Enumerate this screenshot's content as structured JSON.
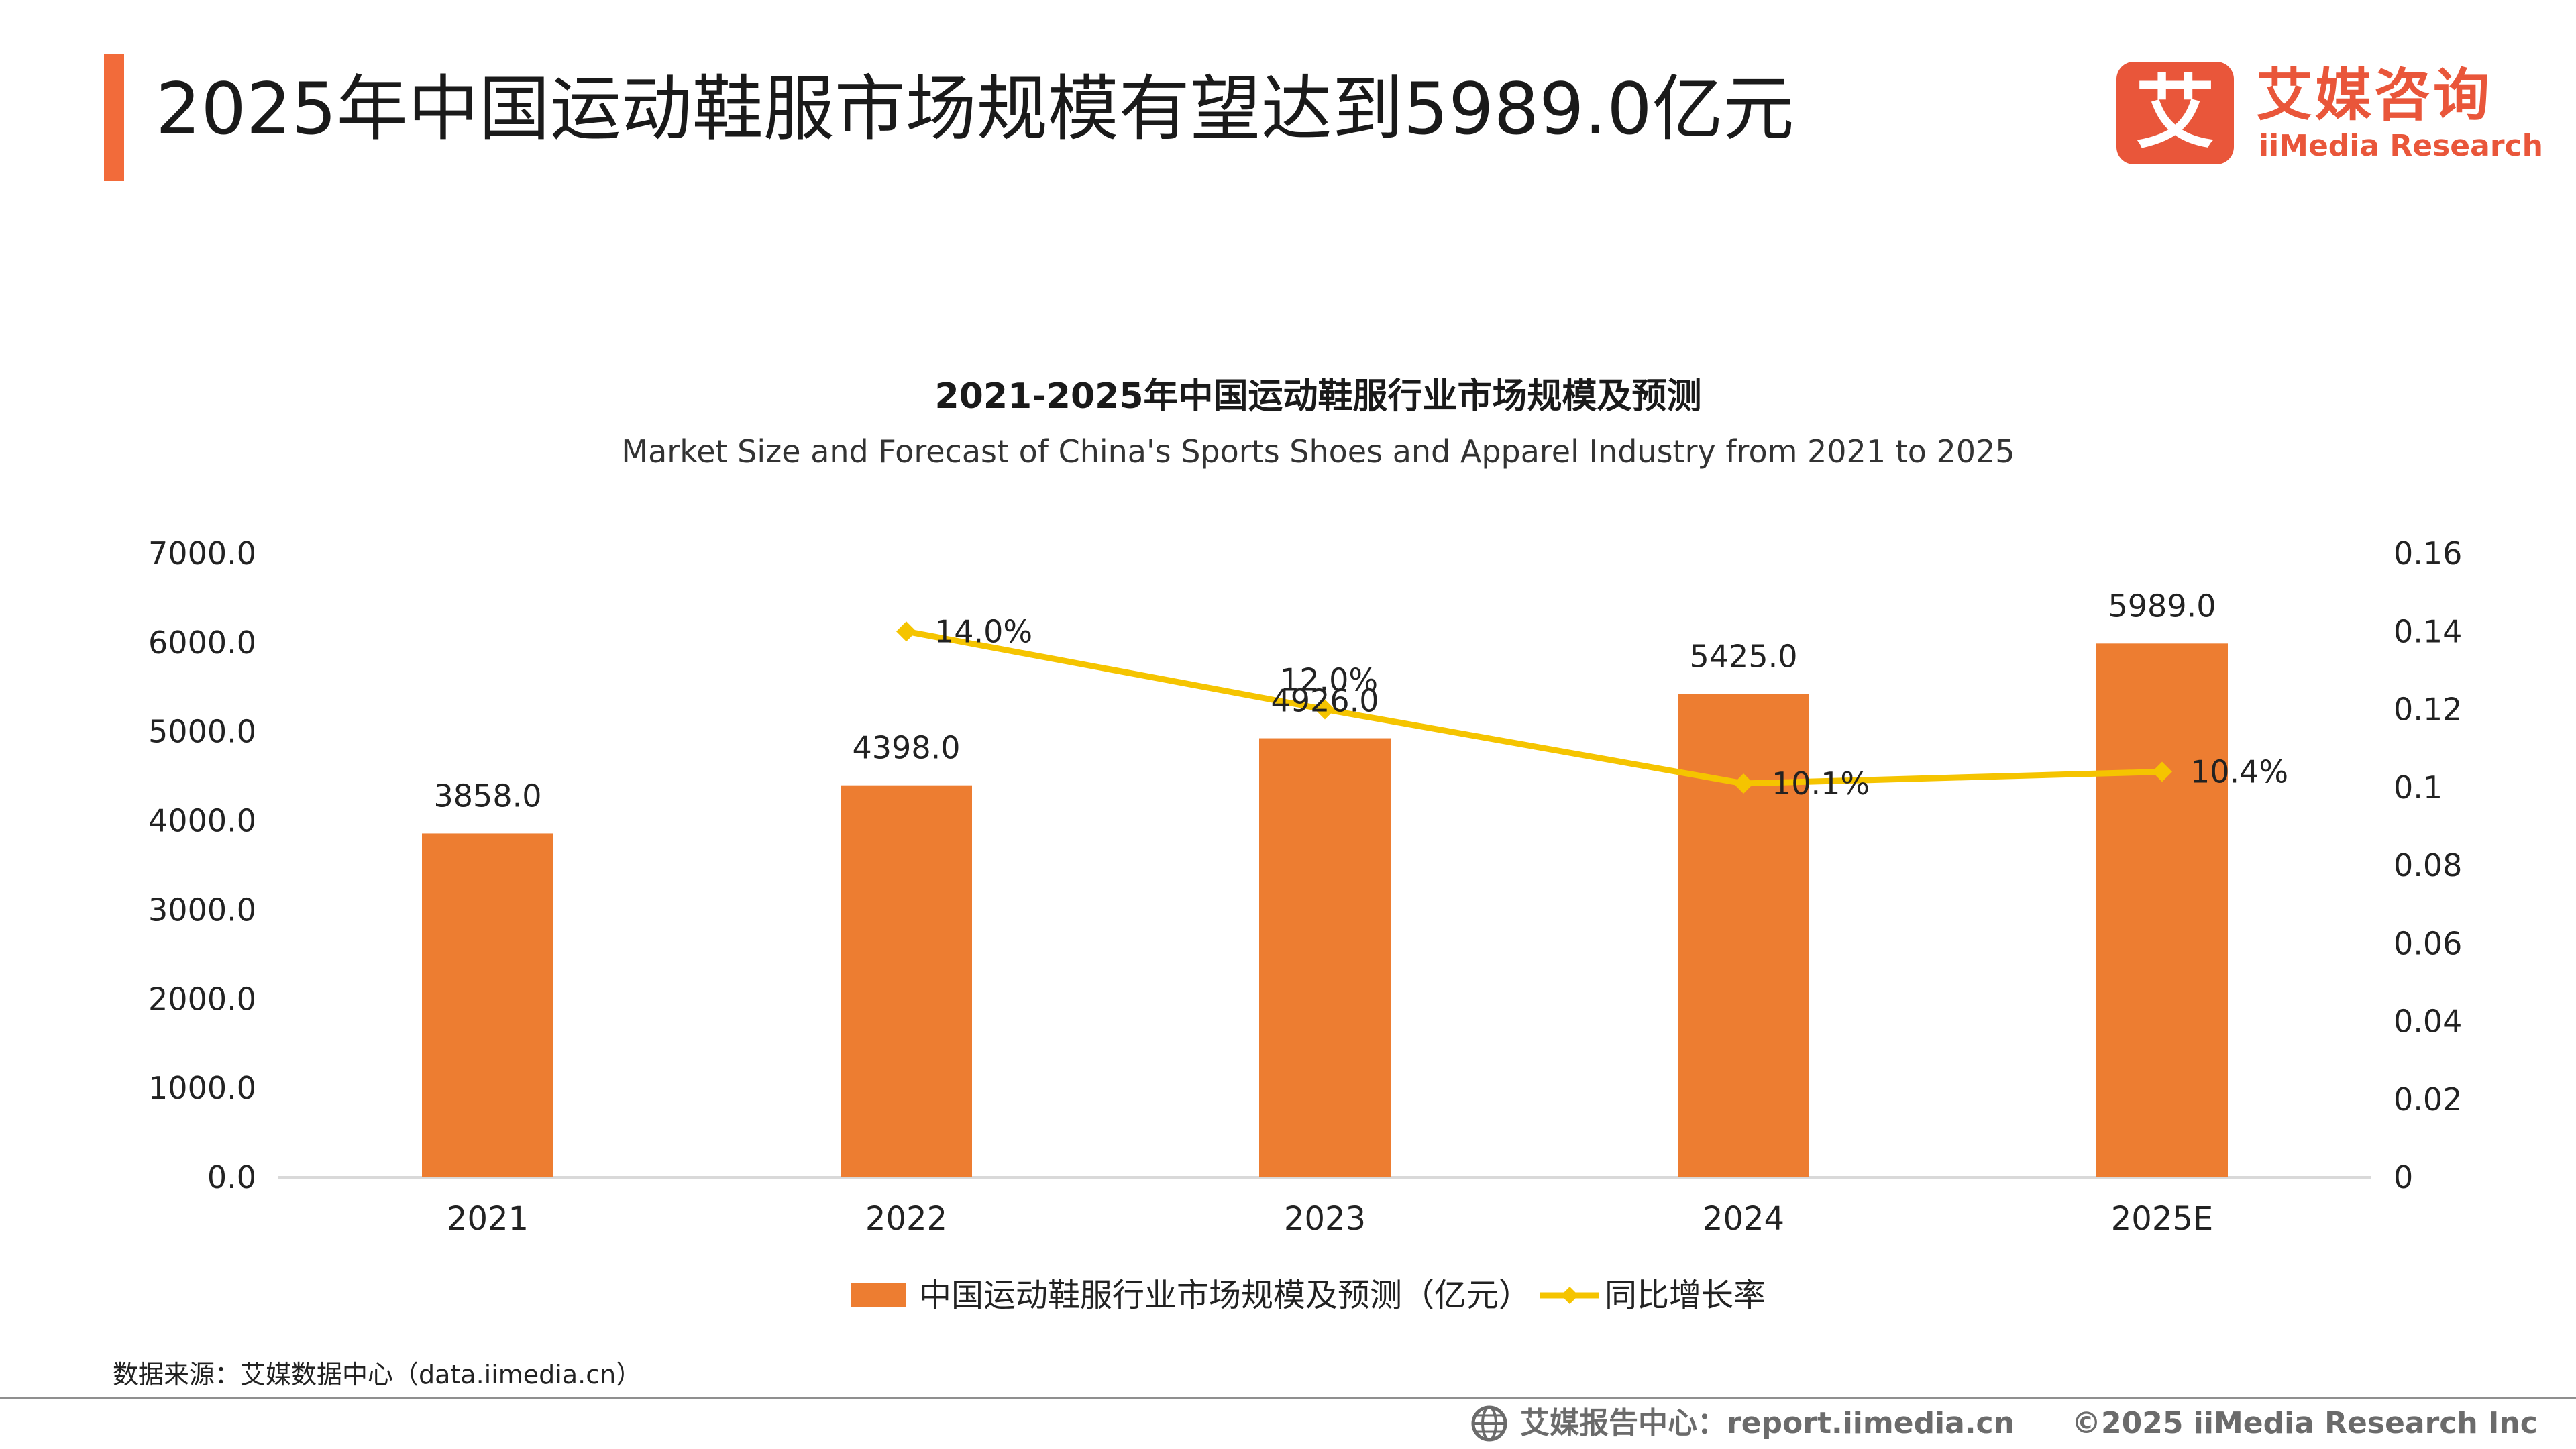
{
  "header": {
    "title": "2025年中国运动鞋服市场规模有望达到5989.0亿元"
  },
  "logo": {
    "mark_char": "艾",
    "name_cn": "艾媒咨询",
    "name_en": "iiMedia Research",
    "color": "#e9563a"
  },
  "chart_data": {
    "type": "bar",
    "title": "2021-2025年中国运动鞋服行业市场规模及预测",
    "subtitle": "Market Size and Forecast of China's Sports Shoes and Apparel Industry from 2021 to 2025",
    "categories": [
      "2021",
      "2022",
      "2023",
      "2024",
      "2025E"
    ],
    "series": [
      {
        "name": "中国运动鞋服行业市场规模及预测（亿元）",
        "type": "bar",
        "axis": "left",
        "color": "#ed7d31",
        "values": [
          3858.0,
          4398.0,
          4926.0,
          5425.0,
          5989.0
        ],
        "labels": [
          "3858.0",
          "4398.0",
          "4926.0",
          "5425.0",
          "5989.0"
        ]
      },
      {
        "name": "同比增长率",
        "type": "line",
        "axis": "right",
        "color": "#f5c400",
        "marker": "diamond",
        "values": [
          null,
          0.14,
          0.12,
          0.101,
          0.104
        ],
        "labels": [
          "",
          "14.0%",
          "12.0%",
          "10.1%",
          "10.4%"
        ]
      }
    ],
    "y_left": {
      "min": 0,
      "max": 7000,
      "ticks": [
        0,
        1000,
        2000,
        3000,
        4000,
        5000,
        6000,
        7000
      ],
      "tick_labels": [
        "0.0",
        "1000.0",
        "2000.0",
        "3000.0",
        "4000.0",
        "5000.0",
        "6000.0",
        "7000.0"
      ]
    },
    "y_right": {
      "min": 0,
      "max": 0.16,
      "ticks": [
        0,
        0.02,
        0.04,
        0.06,
        0.08,
        0.1,
        0.12,
        0.14,
        0.16
      ],
      "tick_labels": [
        "0",
        "0.02",
        "0.04",
        "0.06",
        "0.08",
        "0.1",
        "0.12",
        "0.14",
        "0.16"
      ]
    },
    "grid": false,
    "legend_position": "bottom"
  },
  "source": "数据来源：艾媒数据中心（data.iimedia.cn）",
  "footer": {
    "report_site": "艾媒报告中心：report.iimedia.cn",
    "copyright": "©2025  iiMedia Research  Inc"
  }
}
